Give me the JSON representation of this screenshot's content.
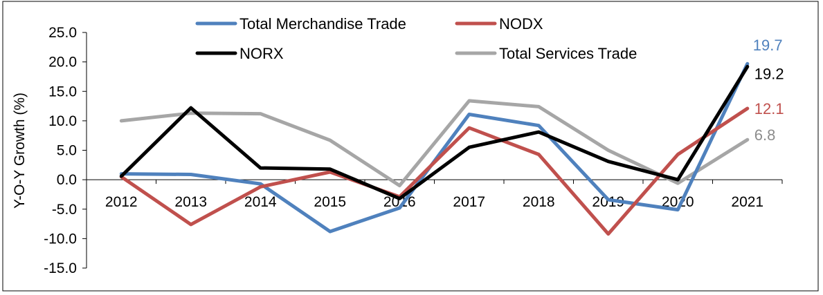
{
  "chart_data": {
    "type": "line",
    "title": "",
    "xlabel": "",
    "ylabel": "Y-O-Y Growth (%)",
    "ylim": [
      -15,
      25
    ],
    "ytick_step": 5,
    "ytick_labels": [
      "25.0",
      "20.0",
      "15.0",
      "10.0",
      "5.0",
      "0.0",
      "-5.0",
      "-10.0",
      "-15.0"
    ],
    "categories": [
      "2012",
      "2013",
      "2014",
      "2015",
      "2016",
      "2017",
      "2018",
      "2019",
      "2020",
      "2021"
    ],
    "grid": false,
    "legend_placement": "top",
    "series": [
      {
        "name": "Total Merchandise Trade",
        "color": "#4f81bd",
        "values": [
          1.0,
          0.9,
          -0.7,
          -8.8,
          -4.8,
          11.1,
          9.2,
          -3.4,
          -5.1,
          19.7
        ],
        "end_label": "19.7"
      },
      {
        "name": "NODX",
        "color": "#c0504d",
        "values": [
          0.5,
          -7.6,
          -1.2,
          1.3,
          -2.9,
          8.8,
          4.3,
          -9.2,
          4.3,
          12.1
        ],
        "end_label": "12.1"
      },
      {
        "name": "NORX",
        "color": "#000000",
        "values": [
          0.6,
          12.2,
          2.0,
          1.8,
          -3.2,
          5.5,
          8.1,
          3.1,
          0.0,
          19.2
        ],
        "end_label": "19.2"
      },
      {
        "name": "Total Services Trade",
        "color": "#a6a6a6",
        "values": [
          10.0,
          11.3,
          11.2,
          6.7,
          -1.0,
          13.4,
          12.4,
          5.0,
          -0.6,
          6.8
        ],
        "end_label": "6.8"
      }
    ]
  }
}
